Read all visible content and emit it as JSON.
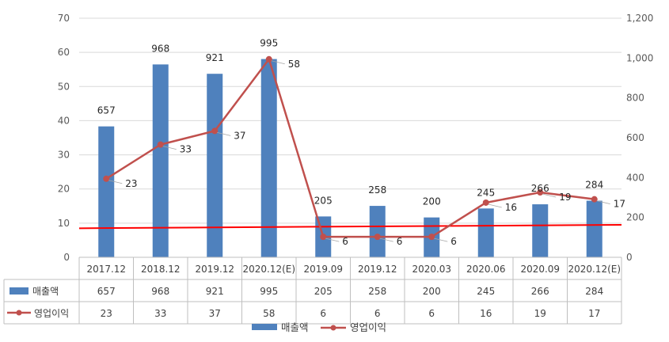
{
  "chart_data": {
    "type": "bar",
    "title": "",
    "categories": [
      "2017.12",
      "2018.12",
      "2019.12",
      "2020.12(E)",
      "2019.09",
      "2019.12",
      "2020.03",
      "2020.06",
      "2020.09",
      "2020.12(E)"
    ],
    "series": [
      {
        "name": "매출액",
        "type": "bar",
        "axis": "right",
        "values": [
          657,
          968,
          921,
          995,
          205,
          258,
          200,
          245,
          266,
          284
        ],
        "color": "#4f81bd"
      },
      {
        "name": "영업이익",
        "type": "line",
        "axis": "left",
        "values": [
          23,
          33,
          37,
          58,
          6,
          6,
          6,
          16,
          19,
          17
        ],
        "color": "#c0504d"
      }
    ],
    "y_left": {
      "min": 0,
      "max": 70,
      "step": 10,
      "tick_labels": [
        "0",
        "10",
        "20",
        "30",
        "40",
        "50",
        "60",
        "70"
      ]
    },
    "y_right": {
      "min": 0,
      "max": 1200,
      "step": 200,
      "tick_labels": [
        "0",
        "200",
        "400",
        "600",
        "800",
        "1,000",
        "1,200"
      ]
    },
    "reference_line": {
      "color": "#ff0000",
      "y_start": 8.5,
      "y_end": 9.5,
      "axis": "left"
    },
    "grid": true,
    "legend": {
      "position": "bottom",
      "items": [
        "매출액",
        "영업이익"
      ]
    },
    "data_table": true,
    "xlabel": "",
    "ylabel": ""
  }
}
